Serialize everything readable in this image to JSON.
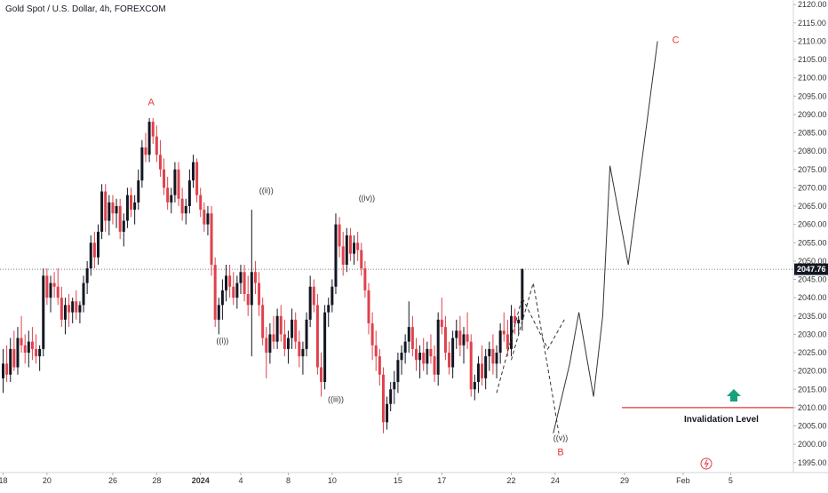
{
  "header": {
    "title": "Gold Spot / U.S. Dollar, 4h, FOREXCOM"
  },
  "chart_data": {
    "type": "candlestick",
    "title": "Gold Spot / U.S. Dollar, 4h, FOREXCOM",
    "symbol": "XAUUSD",
    "timeframe": "4h",
    "ylim": [
      1993,
      2121
    ],
    "y_ticks": [
      1995,
      2000,
      2005,
      2010,
      2015,
      2020,
      2025,
      2030,
      2035,
      2040,
      2045,
      2050,
      2055,
      2060,
      2065,
      2070,
      2075,
      2080,
      2085,
      2090,
      2095,
      2100,
      2105,
      2110,
      2115,
      2120
    ],
    "y_tick_labels": [
      "1995.00",
      "2000.00",
      "2005.00",
      "2010.00",
      "2015.00",
      "2020.00",
      "2025.00",
      "2030.00",
      "2035.00",
      "2040.00",
      "2045.00",
      "2050.00",
      "2055.00",
      "2060.00",
      "2065.00",
      "2070.00",
      "2075.00",
      "2080.00",
      "2085.00",
      "2090.00",
      "2095.00",
      "2100.00",
      "2105.00",
      "2110.00",
      "2115.00",
      "2120.00"
    ],
    "x_ticks": [
      {
        "label": "18",
        "bar": 0
      },
      {
        "label": "20",
        "bar": 12
      },
      {
        "label": "26",
        "bar": 30
      },
      {
        "label": "28",
        "bar": 42
      },
      {
        "label": "2024",
        "bar": 54
      },
      {
        "label": "4",
        "bar": 65
      },
      {
        "label": "8",
        "bar": 78
      },
      {
        "label": "10",
        "bar": 90
      },
      {
        "label": "15",
        "bar": 108
      },
      {
        "label": "17",
        "bar": 120
      },
      {
        "label": "22",
        "bar": 139
      },
      {
        "label": "24",
        "bar": 151
      },
      {
        "label": "29",
        "bar": 170
      },
      {
        "label": "Feb",
        "bar": 186
      },
      {
        "label": "5",
        "bar": 199
      }
    ],
    "current_price": 2047.76,
    "current_price_label": "2047.76",
    "invalidation_level": 2010,
    "invalidation_label": "Invalidation Level",
    "candles": [
      [
        2018,
        2026,
        2014,
        2022
      ],
      [
        2022,
        2027,
        2017,
        2019
      ],
      [
        2019,
        2029,
        2017,
        2026
      ],
      [
        2026,
        2031,
        2020,
        2021
      ],
      [
        2021,
        2032,
        2019,
        2029
      ],
      [
        2029,
        2035,
        2025,
        2027
      ],
      [
        2027,
        2030,
        2022,
        2025
      ],
      [
        2025,
        2031,
        2021,
        2028
      ],
      [
        2028,
        2032,
        2023,
        2026
      ],
      [
        2026,
        2030,
        2022,
        2024
      ],
      [
        2024,
        2027,
        2020,
        2026
      ],
      [
        2026,
        2048,
        2024,
        2046
      ],
      [
        2046,
        2048,
        2038,
        2040
      ],
      [
        2040,
        2046,
        2036,
        2044
      ],
      [
        2044,
        2047,
        2040,
        2043
      ],
      [
        2043,
        2048,
        2038,
        2040
      ],
      [
        2040,
        2043,
        2032,
        2034
      ],
      [
        2034,
        2040,
        2030,
        2038
      ],
      [
        2038,
        2041,
        2032,
        2036
      ],
      [
        2036,
        2040,
        2033,
        2039
      ],
      [
        2039,
        2042,
        2034,
        2036
      ],
      [
        2036,
        2039,
        2033,
        2038
      ],
      [
        2038,
        2046,
        2036,
        2044
      ],
      [
        2044,
        2050,
        2041,
        2048
      ],
      [
        2048,
        2057,
        2046,
        2055
      ],
      [
        2055,
        2058,
        2048,
        2051
      ],
      [
        2051,
        2060,
        2049,
        2058
      ],
      [
        2058,
        2071,
        2056,
        2069
      ],
      [
        2069,
        2071,
        2058,
        2061
      ],
      [
        2061,
        2068,
        2057,
        2066
      ],
      [
        2066,
        2068,
        2060,
        2063
      ],
      [
        2063,
        2067,
        2059,
        2065
      ],
      [
        2065,
        2067,
        2056,
        2058
      ],
      [
        2058,
        2063,
        2054,
        2061
      ],
      [
        2061,
        2070,
        2059,
        2068
      ],
      [
        2068,
        2070,
        2062,
        2064
      ],
      [
        2064,
        2068,
        2060,
        2066
      ],
      [
        2066,
        2075,
        2064,
        2072
      ],
      [
        2072,
        2083,
        2070,
        2081
      ],
      [
        2081,
        2085,
        2077,
        2079
      ],
      [
        2079,
        2089,
        2077,
        2088
      ],
      [
        2088,
        2089,
        2082,
        2084
      ],
      [
        2084,
        2087,
        2077,
        2079
      ],
      [
        2079,
        2083,
        2073,
        2075
      ],
      [
        2075,
        2078,
        2068,
        2070
      ],
      [
        2070,
        2073,
        2064,
        2066
      ],
      [
        2066,
        2070,
        2063,
        2068
      ],
      [
        2068,
        2077,
        2066,
        2075
      ],
      [
        2075,
        2077,
        2065,
        2067
      ],
      [
        2067,
        2070,
        2061,
        2063
      ],
      [
        2063,
        2067,
        2060,
        2065
      ],
      [
        2065,
        2075,
        2063,
        2072
      ],
      [
        2072,
        2079,
        2070,
        2077
      ],
      [
        2077,
        2078,
        2066,
        2068
      ],
      [
        2068,
        2070,
        2062,
        2064
      ],
      [
        2064,
        2066,
        2058,
        2060
      ],
      [
        2060,
        2065,
        2057,
        2063
      ],
      [
        2063,
        2065,
        2046,
        2049
      ],
      [
        2049,
        2051,
        2032,
        2034
      ],
      [
        2034,
        2040,
        2030,
        2038
      ],
      [
        2038,
        2045,
        2034,
        2042
      ],
      [
        2042,
        2049,
        2039,
        2046
      ],
      [
        2046,
        2049,
        2040,
        2043
      ],
      [
        2043,
        2047,
        2038,
        2040
      ],
      [
        2040,
        2046,
        2037,
        2044
      ],
      [
        2044,
        2049,
        2041,
        2047
      ],
      [
        2047,
        2049,
        2039,
        2041
      ],
      [
        2041,
        2046,
        2035,
        2038
      ],
      [
        2038,
        2064,
        2024,
        2047
      ],
      [
        2047,
        2050,
        2041,
        2044
      ],
      [
        2044,
        2047,
        2035,
        2038
      ],
      [
        2038,
        2040,
        2027,
        2029
      ],
      [
        2029,
        2032,
        2018,
        2025
      ],
      [
        2025,
        2033,
        2022,
        2030
      ],
      [
        2030,
        2035,
        2026,
        2028
      ],
      [
        2028,
        2037,
        2026,
        2035
      ],
      [
        2035,
        2038,
        2028,
        2030
      ],
      [
        2030,
        2034,
        2024,
        2026
      ],
      [
        2026,
        2031,
        2022,
        2029
      ],
      [
        2029,
        2037,
        2026,
        2034
      ],
      [
        2034,
        2036,
        2026,
        2028
      ],
      [
        2028,
        2031,
        2021,
        2024
      ],
      [
        2024,
        2028,
        2019,
        2026
      ],
      [
        2026,
        2036,
        2024,
        2034
      ],
      [
        2034,
        2046,
        2032,
        2043
      ],
      [
        2043,
        2045,
        2036,
        2038
      ],
      [
        2038,
        2041,
        2019,
        2021
      ],
      [
        2021,
        2025,
        2013,
        2017
      ],
      [
        2017,
        2038,
        2015,
        2036
      ],
      [
        2036,
        2040,
        2032,
        2038
      ],
      [
        2038,
        2045,
        2036,
        2043
      ],
      [
        2043,
        2063,
        2041,
        2060
      ],
      [
        2060,
        2062,
        2051,
        2054
      ],
      [
        2054,
        2058,
        2046,
        2049
      ],
      [
        2049,
        2059,
        2047,
        2057
      ],
      [
        2057,
        2059,
        2050,
        2052
      ],
      [
        2052,
        2057,
        2049,
        2055
      ],
      [
        2055,
        2058,
        2050,
        2053
      ],
      [
        2053,
        2055,
        2046,
        2048
      ],
      [
        2048,
        2050,
        2040,
        2042
      ],
      [
        2042,
        2044,
        2030,
        2033
      ],
      [
        2033,
        2036,
        2023,
        2027
      ],
      [
        2027,
        2031,
        2020,
        2024
      ],
      [
        2024,
        2026,
        2016,
        2019
      ],
      [
        2019,
        2021,
        2003,
        2006
      ],
      [
        2006,
        2013,
        2004,
        2011
      ],
      [
        2011,
        2017,
        2009,
        2015
      ],
      [
        2015,
        2020,
        2011,
        2017
      ],
      [
        2017,
        2025,
        2014,
        2023
      ],
      [
        2023,
        2027,
        2019,
        2025
      ],
      [
        2025,
        2030,
        2022,
        2028
      ],
      [
        2028,
        2039,
        2025,
        2032
      ],
      [
        2032,
        2035,
        2024,
        2026
      ],
      [
        2026,
        2029,
        2020,
        2023
      ],
      [
        2023,
        2027,
        2018,
        2025
      ],
      [
        2025,
        2029,
        2020,
        2022
      ],
      [
        2022,
        2028,
        2019,
        2026
      ],
      [
        2026,
        2030,
        2022,
        2024
      ],
      [
        2024,
        2027,
        2017,
        2019
      ],
      [
        2019,
        2036,
        2016,
        2034
      ],
      [
        2034,
        2040,
        2030,
        2032
      ],
      [
        2032,
        2035,
        2023,
        2025
      ],
      [
        2025,
        2028,
        2019,
        2021
      ],
      [
        2021,
        2031,
        2018,
        2029
      ],
      [
        2029,
        2034,
        2026,
        2031
      ],
      [
        2031,
        2035,
        2024,
        2027
      ],
      [
        2027,
        2032,
        2022,
        2030
      ],
      [
        2030,
        2036,
        2026,
        2028
      ],
      [
        2028,
        2030,
        2013,
        2015
      ],
      [
        2015,
        2019,
        2012,
        2017
      ],
      [
        2017,
        2024,
        2014,
        2022
      ],
      [
        2022,
        2027,
        2016,
        2018
      ],
      [
        2018,
        2026,
        2015,
        2024
      ],
      [
        2024,
        2028,
        2020,
        2026
      ],
      [
        2026,
        2030,
        2019,
        2022
      ],
      [
        2022,
        2027,
        2018,
        2025
      ],
      [
        2025,
        2033,
        2022,
        2031
      ],
      [
        2031,
        2036,
        2028,
        2030
      ],
      [
        2030,
        2034,
        2024,
        2026
      ],
      [
        2026,
        2038,
        2024,
        2035
      ],
      [
        2035,
        2037,
        2030,
        2033
      ],
      [
        2033,
        2035,
        2030,
        2034
      ],
      [
        2034,
        2048,
        2031,
        2047.76
      ]
    ],
    "elliott_waves": [
      {
        "label": "A",
        "bar": 40.5,
        "price": 2092.5,
        "style": "letter"
      },
      {
        "label": "((i))",
        "bar": 60,
        "price": 2027.5,
        "style": "wave"
      },
      {
        "label": "((ii))",
        "bar": 72,
        "price": 2068.5,
        "style": "wave"
      },
      {
        "label": "((iii))",
        "bar": 91,
        "price": 2011.5,
        "style": "wave"
      },
      {
        "label": "((iv))",
        "bar": 99.5,
        "price": 2066.5,
        "style": "wave"
      },
      {
        "label": "((v))",
        "bar": 152.5,
        "price": 2001,
        "style": "wave"
      },
      {
        "label": "B",
        "bar": 152.5,
        "price": 1997,
        "style": "letter"
      },
      {
        "label": "C",
        "bar": 184,
        "price": 2109.5,
        "style": "letter"
      }
    ],
    "projection_solid": [
      [
        150.5,
        2003
      ],
      [
        155,
        2022
      ],
      [
        157.5,
        2036
      ],
      [
        161.5,
        2013
      ],
      [
        164,
        2035
      ],
      [
        166,
        2076
      ],
      [
        171,
        2049
      ],
      [
        179,
        2110
      ]
    ],
    "projection_dashed_left": [
      [
        135,
        2014
      ],
      [
        142,
        2040
      ],
      [
        149,
        2026
      ],
      [
        153.5,
        2034
      ]
    ],
    "projection_dashed_right": [
      [
        139,
        2023
      ],
      [
        145,
        2044
      ],
      [
        150,
        2015
      ],
      [
        152,
        2003
      ]
    ]
  }
}
